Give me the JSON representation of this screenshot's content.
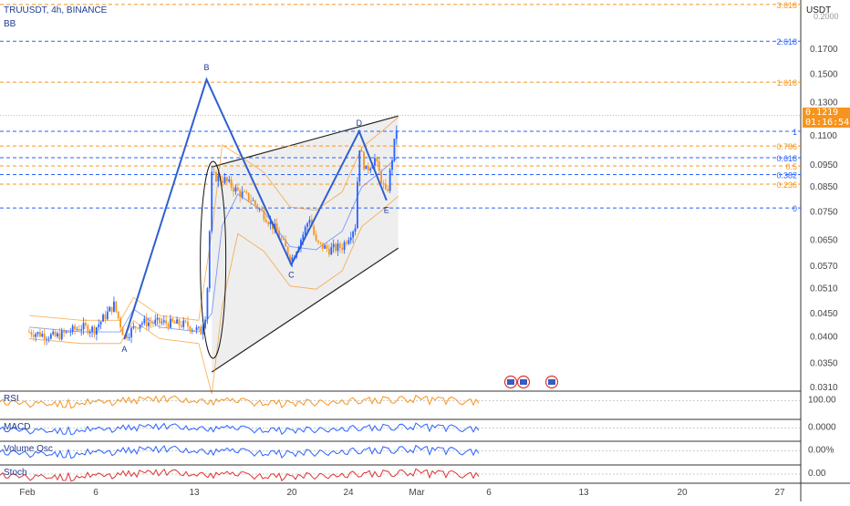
{
  "header": {
    "ticker": "TRUUSDT, 4h, BINANCE",
    "indicator": "BB",
    "currency": "USDT"
  },
  "price_tag": {
    "price": "0.1219",
    "countdown": "01:16:54"
  },
  "colors": {
    "blue": "#2962ff",
    "orange": "#f7941d",
    "up": "#2962ff",
    "down": "#f7941d",
    "pattern_blue": "#2f5fd0",
    "channel_fill": "#e0e0e0"
  },
  "panes": {
    "rsi": {
      "label": "RSI",
      "value": "100.00"
    },
    "macd": {
      "label": "MACD",
      "value": "0.0000"
    },
    "volume_osc": {
      "label": "Volume Osc",
      "value": "0.00%"
    },
    "stoch": {
      "label": "Stoch",
      "value": "0.00"
    }
  },
  "chart_data": {
    "type": "candlestick",
    "scale": "log",
    "y_ticks": [
      "0.1700",
      "0.1500",
      "0.1300",
      "0.1100",
      "0.0950",
      "0.0850",
      "0.0750",
      "0.0650",
      "0.0570",
      "0.0510",
      "0.0450",
      "0.0400",
      "0.0350",
      "0.0310"
    ],
    "y_top_partial": "0.2000",
    "x_ticks": [
      "Feb",
      "6",
      "13",
      "20",
      "24",
      "Mar",
      "6",
      "13",
      "20",
      "27"
    ],
    "fib_levels": [
      {
        "label": "3.618",
        "value": 0.213,
        "color": "orange"
      },
      {
        "label": "2.618",
        "value": 0.177,
        "color": "blue"
      },
      {
        "label": "1.618",
        "value": 0.144,
        "color": "orange"
      },
      {
        "label": "1",
        "value": 0.1125,
        "color": "blue"
      },
      {
        "label": "0.786",
        "value": 0.1045,
        "color": "orange"
      },
      {
        "label": "0.618",
        "value": 0.0985,
        "color": "blue"
      },
      {
        "label": "0.5",
        "value": 0.0945,
        "color": "orange"
      },
      {
        "label": "0.382",
        "value": 0.0905,
        "color": "blue"
      },
      {
        "label": "0.236",
        "value": 0.0862,
        "color": "orange"
      },
      {
        "label": "0",
        "value": 0.0765,
        "color": "blue"
      }
    ],
    "pattern_points": [
      {
        "label": "A",
        "day": 8.3,
        "value": 0.0395
      },
      {
        "label": "B",
        "day": 14.6,
        "value": 0.146
      },
      {
        "label": "C",
        "day": 21.1,
        "value": 0.0575
      },
      {
        "label": "D",
        "day": 26.3,
        "value": 0.1125
      },
      {
        "label": "E",
        "day": 28.4,
        "value": 0.0795
      }
    ],
    "channel": {
      "upper": [
        {
          "day": 15.0,
          "value": 0.094
        },
        {
          "day": 29.3,
          "value": 0.1215
        }
      ],
      "lower": [
        {
          "day": 15.0,
          "value": 0.0335
        },
        {
          "day": 29.3,
          "value": 0.0625
        }
      ]
    },
    "current_price": 0.1219
  }
}
